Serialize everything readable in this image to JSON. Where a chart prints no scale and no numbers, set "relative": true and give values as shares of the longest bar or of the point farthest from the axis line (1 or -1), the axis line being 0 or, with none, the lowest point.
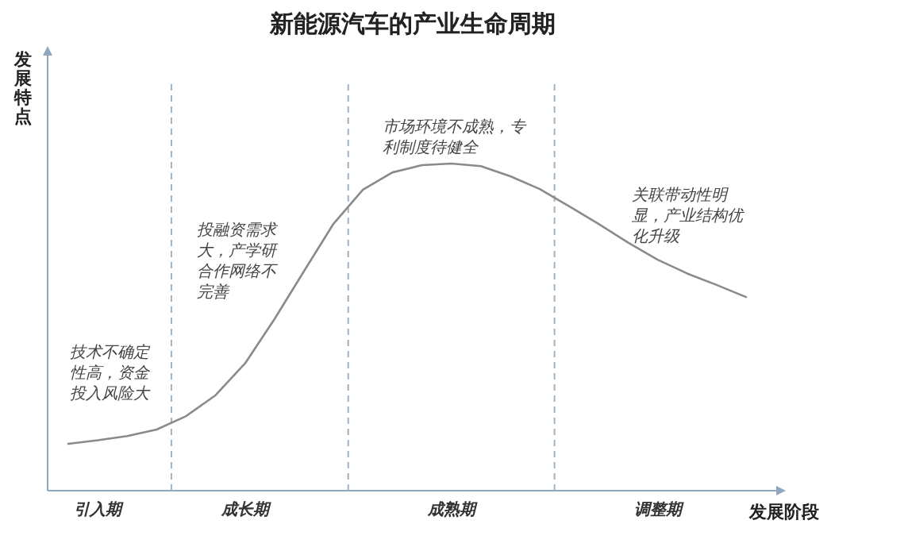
{
  "chart_data": {
    "type": "line",
    "relative": true,
    "title": "新能源汽车的产业生命周期",
    "xlabel": "发展阶段",
    "ylabel": "发展特点",
    "categories": [
      null,
      "引入期",
      null,
      null,
      null,
      null,
      "成长期",
      null,
      null,
      null,
      null,
      null,
      null,
      "成熟期",
      null,
      null,
      null,
      null,
      null,
      null,
      "调整期",
      null,
      null,
      null
    ],
    "series": [
      {
        "color": "#8a8a8a",
        "values": [
          0.143,
          0.154,
          0.167,
          0.187,
          0.228,
          0.292,
          0.389,
          0.525,
          0.671,
          0.816,
          0.92,
          0.973,
          0.995,
          1,
          0.992,
          0.961,
          0.922,
          0.869,
          0.815,
          0.758,
          0.706,
          0.664,
          0.629,
          0.592
        ]
      }
    ],
    "annotations": [
      "技术不确定性高，资金投入风险大",
      "投融资需求大，产学研合作网络不完善",
      "市场环境不成熟，专利制度待健全",
      "关联带动性明显，产业结构优化升级"
    ]
  }
}
